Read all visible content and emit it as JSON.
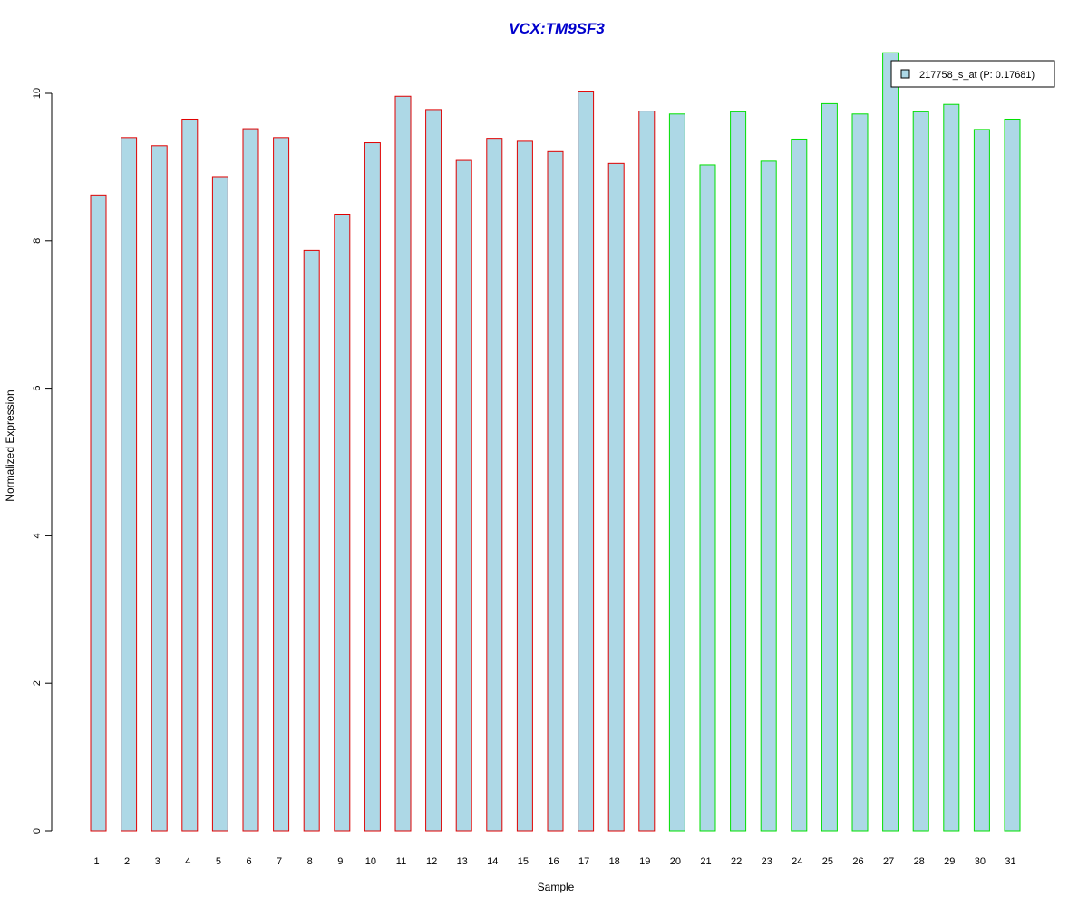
{
  "chart_data": {
    "type": "bar",
    "title": "VCX:TM9SF3",
    "xlabel": "Sample",
    "ylabel": "Normalized Expression",
    "categories": [
      "1",
      "2",
      "3",
      "4",
      "5",
      "6",
      "7",
      "8",
      "9",
      "10",
      "11",
      "12",
      "13",
      "14",
      "15",
      "16",
      "17",
      "18",
      "19",
      "20",
      "21",
      "22",
      "23",
      "24",
      "25",
      "26",
      "27",
      "28",
      "29",
      "30",
      "31"
    ],
    "values": [
      8.62,
      9.4,
      9.29,
      9.65,
      8.87,
      9.52,
      9.4,
      7.87,
      8.36,
      9.33,
      9.96,
      9.78,
      9.09,
      9.39,
      9.35,
      9.21,
      10.03,
      9.05,
      9.76,
      9.72,
      9.03,
      9.75,
      9.08,
      9.38,
      9.86,
      9.72,
      10.55,
      9.75,
      9.85,
      9.51,
      9.65
    ],
    "groups": [
      "red",
      "red",
      "red",
      "red",
      "red",
      "red",
      "red",
      "red",
      "red",
      "red",
      "red",
      "red",
      "red",
      "red",
      "red",
      "red",
      "red",
      "red",
      "red",
      "green",
      "green",
      "green",
      "green",
      "green",
      "green",
      "green",
      "green",
      "green",
      "green",
      "green",
      "green"
    ],
    "ylim": [
      0,
      10
    ],
    "yticks": [
      "0",
      "2",
      "4",
      "6",
      "8",
      "10"
    ],
    "legend": {
      "label": "217758_s_at (P: 0.17681)",
      "placement": "top-right"
    },
    "grid": false,
    "colors": {
      "fill": "#add8e6",
      "border_group1": "#e00000",
      "border_group2": "#00e000",
      "title": "#0000cc"
    }
  }
}
